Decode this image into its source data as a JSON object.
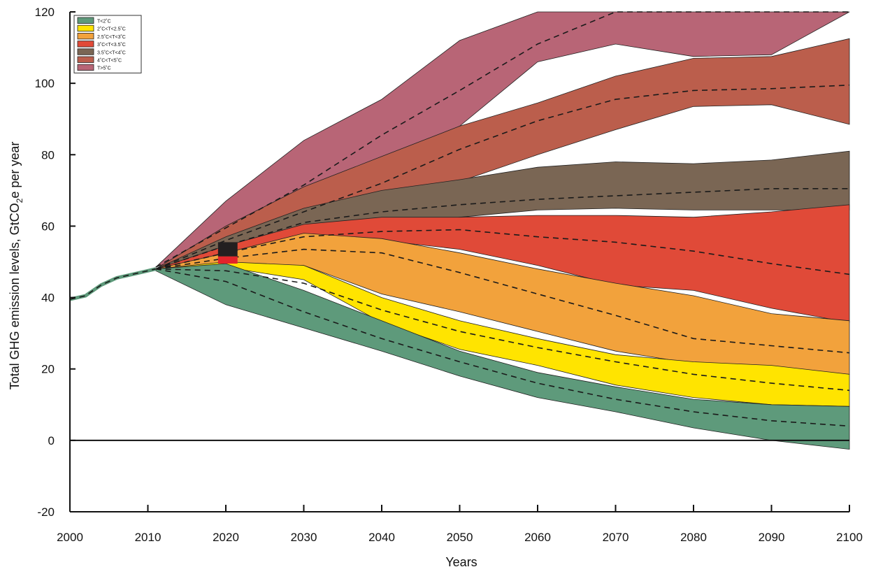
{
  "chart_data": {
    "type": "area",
    "title": "",
    "xlabel": "Years",
    "ylabel_main": "Total GHG emission levels, GtCO",
    "ylabel_sub": "2",
    "ylabel_tail": "e per year",
    "xlim": [
      2000,
      2100
    ],
    "ylim": [
      -20,
      120
    ],
    "x_ticks": [
      2000,
      2010,
      2020,
      2030,
      2040,
      2050,
      2060,
      2070,
      2080,
      2090,
      2100
    ],
    "y_ticks": [
      -20,
      0,
      20,
      40,
      60,
      80,
      100,
      120
    ],
    "grid": false,
    "zero_line": true,
    "legend_position": "top-left",
    "history": {
      "x": [
        2000,
        2002,
        2004,
        2006,
        2008,
        2010,
        2011
      ],
      "y": [
        39.5,
        40.5,
        43.5,
        45.5,
        46.5,
        47.5,
        48.0
      ]
    },
    "box_2020": {
      "x": [
        2019,
        2021.5
      ],
      "black_range": [
        51.5,
        55.5
      ],
      "red_range": [
        49.5,
        51.5
      ]
    },
    "x": [
      2011,
      2020,
      2030,
      2040,
      2050,
      2060,
      2070,
      2080,
      2090,
      2100
    ],
    "series": [
      {
        "name": "T<2˚C",
        "color": "#5e9a7b",
        "upper": [
          48.0,
          49.5,
          42.0,
          33.5,
          25.0,
          19.0,
          15.0,
          11.5,
          10.0,
          9.5
        ],
        "median": [
          48.0,
          44.5,
          36.0,
          28.5,
          22.0,
          16.0,
          11.5,
          8.0,
          5.5,
          4.0
        ],
        "lower": [
          47.5,
          38.0,
          31.5,
          25.0,
          18.0,
          12.0,
          8.0,
          3.5,
          0.0,
          -2.5
        ]
      },
      {
        "name": "2˚C<T<2.5˚C",
        "color": "#ffe400",
        "upper": [
          48.0,
          50.0,
          49.0,
          40.0,
          33.5,
          28.5,
          24.0,
          22.0,
          21.0,
          18.5
        ],
        "median": [
          48.0,
          47.5,
          44.0,
          36.5,
          30.5,
          26.0,
          22.0,
          18.5,
          16.0,
          14.0
        ],
        "lower": [
          48.0,
          48.5,
          45.0,
          33.0,
          25.5,
          21.0,
          15.5,
          12.0,
          10.0,
          9.5
        ]
      },
      {
        "name": "2.5˚C<T<3˚C",
        "color": "#f2a23c",
        "upper": [
          48.0,
          52.5,
          58.0,
          56.5,
          52.5,
          48.0,
          44.0,
          40.5,
          35.5,
          33.5
        ],
        "median": [
          48.0,
          51.0,
          53.5,
          52.5,
          47.0,
          41.0,
          35.0,
          28.5,
          26.5,
          24.5
        ],
        "lower": [
          48.0,
          49.5,
          49.0,
          41.0,
          36.0,
          30.5,
          25.0,
          21.5,
          20.0,
          18.5
        ]
      },
      {
        "name": "3˚C<T<3.5˚C",
        "color": "#e04a38",
        "upper": [
          48.0,
          54.5,
          60.5,
          62.5,
          62.5,
          63.0,
          63.0,
          62.5,
          64.0,
          66.0
        ],
        "median": [
          48.0,
          52.5,
          57.0,
          58.5,
          59.0,
          57.0,
          55.5,
          53.0,
          49.5,
          46.5
        ],
        "lower": [
          48.0,
          51.0,
          54.5,
          56.0,
          53.5,
          49.0,
          43.5,
          42.0,
          37.0,
          33.0
        ]
      },
      {
        "name": "3.5˚C<T<4˚C",
        "color": "#7a6654",
        "upper": [
          48.0,
          57.0,
          65.0,
          70.0,
          73.0,
          76.5,
          78.0,
          77.5,
          78.5,
          81.0
        ],
        "median": [
          48.0,
          54.5,
          61.0,
          64.0,
          66.0,
          67.5,
          68.5,
          69.5,
          70.5,
          70.5
        ],
        "lower": [
          48.0,
          52.0,
          57.5,
          60.5,
          62.5,
          64.5,
          65.0,
          64.5,
          64.5,
          64.5
        ]
      },
      {
        "name": "4˚C<T<5˚C",
        "color": "#bb5e4c",
        "upper": [
          48.0,
          60.0,
          71.0,
          79.5,
          88.0,
          94.5,
          102.0,
          107.0,
          107.5,
          112.5
        ],
        "median": [
          48.0,
          56.0,
          64.0,
          72.0,
          81.5,
          89.5,
          95.5,
          98.0,
          98.5,
          99.5
        ],
        "lower": [
          48.0,
          53.0,
          60.0,
          66.5,
          72.5,
          80.0,
          87.0,
          93.5,
          94.0,
          88.5
        ]
      },
      {
        "name": "T>5˚C",
        "color": "#b86576",
        "upper": [
          48.5,
          67.0,
          84.0,
          95.5,
          112.0,
          120.0,
          120.0,
          120.0,
          120.0,
          120.0
        ],
        "median": [
          48.5,
          59.5,
          71.5,
          85.5,
          98.0,
          111.0,
          120.0,
          120.0,
          120.0,
          120.0
        ],
        "lower": [
          48.5,
          56.0,
          65.5,
          77.0,
          88.0,
          106.0,
          111.0,
          107.5,
          108.0,
          120.0
        ]
      }
    ]
  }
}
